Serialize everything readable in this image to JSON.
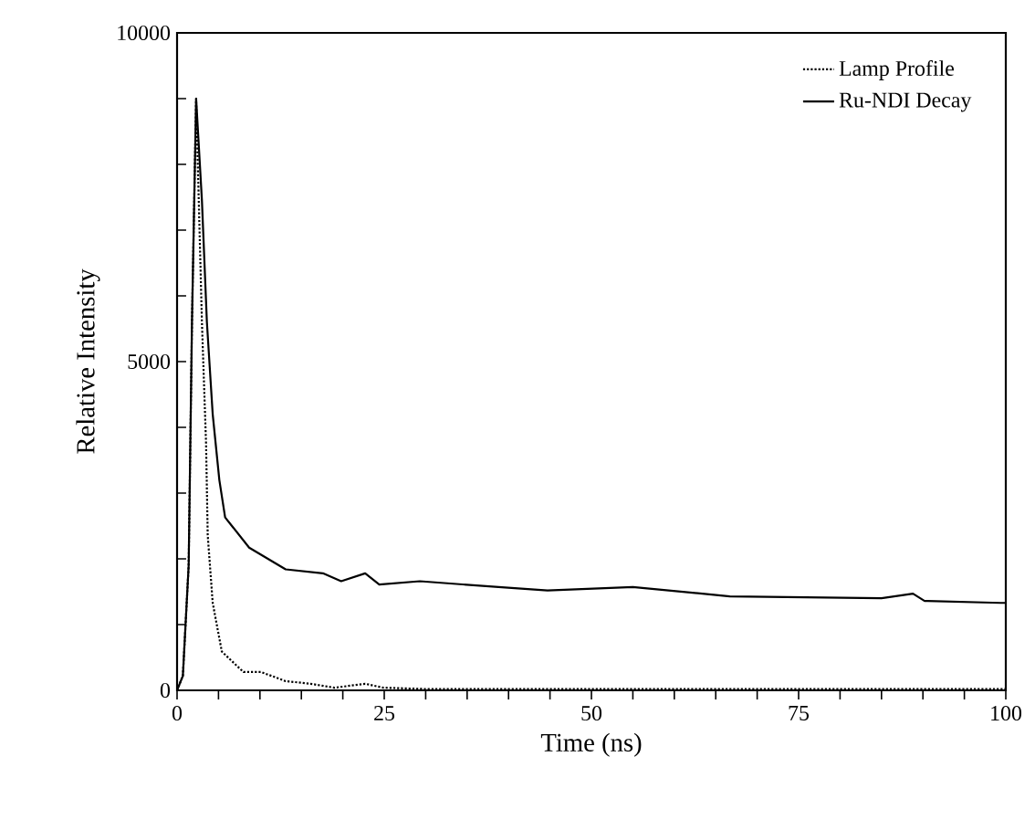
{
  "chart_data": {
    "type": "line",
    "xlabel": "Time (ns)",
    "ylabel": "Relative Intensity",
    "xlim": [
      0,
      100
    ],
    "ylim": [
      0,
      10000
    ],
    "xticks": [
      0,
      {
        "value": 5,
        "label": null
      },
      {
        "value": 10,
        "label": null
      },
      {
        "value": 15,
        "label": null
      },
      {
        "value": 20,
        "label": null
      },
      25,
      {
        "value": 30,
        "label": null
      },
      {
        "value": 35,
        "label": null
      },
      {
        "value": 40,
        "label": null
      },
      {
        "value": 45,
        "label": null
      },
      50,
      {
        "value": 55,
        "label": null
      },
      {
        "value": 60,
        "label": null
      },
      {
        "value": 65,
        "label": null
      },
      {
        "value": 70,
        "label": null
      },
      75,
      {
        "value": 80,
        "label": null
      },
      {
        "value": 85,
        "label": null
      },
      {
        "value": 90,
        "label": null
      },
      {
        "value": 95,
        "label": null
      },
      100
    ],
    "yticks": [
      0,
      {
        "value": 1000,
        "label": null
      },
      {
        "value": 2000,
        "label": null
      },
      {
        "value": 3000,
        "label": null
      },
      {
        "value": 4000,
        "label": null
      },
      5000,
      {
        "value": 6000,
        "label": null
      },
      {
        "value": 7000,
        "label": null
      },
      {
        "value": 8000,
        "label": null
      },
      {
        "value": 9000,
        "label": null
      },
      10000
    ],
    "legend": "top right",
    "grid": false,
    "series": [
      {
        "name": "Lamp Profile",
        "color": "#000000",
        "line_style": "dotted",
        "x": [
          0,
          0.7,
          1.4,
          1.8,
          2.3,
          3.0,
          3.5,
          3.7,
          4.3,
          5.4,
          8.0,
          10.1,
          13.1,
          16.1,
          19.0,
          22.7,
          24.9,
          30,
          40,
          50,
          60,
          70,
          80,
          90,
          100
        ],
        "values": [
          0,
          220,
          1900,
          5600,
          9000,
          5600,
          3750,
          2360,
          1330,
          590,
          280,
          280,
          140,
          100,
          40,
          100,
          40,
          20,
          20,
          20,
          20,
          20,
          20,
          20,
          20
        ]
      },
      {
        "name": "Ru-NDI Decay",
        "color": "#000000",
        "line_style": "solid",
        "x": [
          0,
          0.7,
          1.4,
          1.8,
          2.3,
          3.0,
          3.6,
          4.3,
          5.1,
          5.8,
          8.7,
          13.1,
          17.6,
          19.8,
          22.7,
          24.4,
          29.3,
          38.8,
          44.7,
          55,
          66.7,
          85,
          88.8,
          90.2,
          99.4,
          100
        ],
        "values": [
          0,
          220,
          1900,
          5600,
          9000,
          7450,
          5600,
          4200,
          3200,
          2630,
          2170,
          1840,
          1780,
          1660,
          1780,
          1610,
          1660,
          1570,
          1520,
          1570,
          1430,
          1400,
          1470,
          1360,
          1330,
          1330
        ]
      }
    ]
  }
}
